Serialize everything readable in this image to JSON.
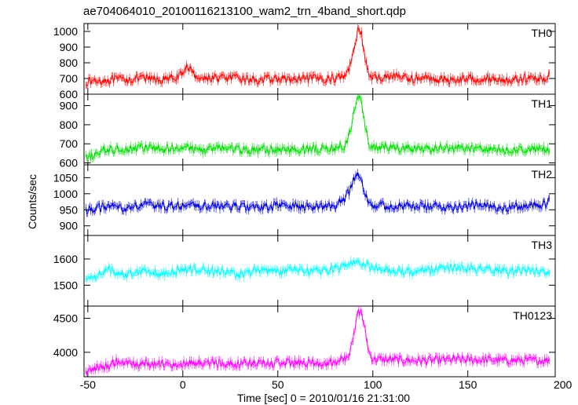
{
  "chart_data": {
    "type": "line",
    "title": "ae704064010_20100116213100_wam2_trn_4band_short.qdp",
    "xlabel": "Time [sec] 0 = 2010/01/16 21:31:00",
    "ylabel": "Counts/sec",
    "xlim": [
      -52,
      196
    ],
    "xticks": [
      -50,
      0,
      50,
      100,
      150,
      200
    ],
    "grid": false,
    "error_bars": true,
    "panels": [
      {
        "name": "TH0",
        "color": "#ff0000",
        "ylim": [
          600,
          1050
        ],
        "yticks": [
          600,
          700,
          800,
          900,
          1000
        ],
        "x": [
          -50,
          -40,
          -30,
          -20,
          -10,
          0,
          2,
          5,
          10,
          20,
          30,
          40,
          50,
          60,
          70,
          80,
          85,
          88,
          90,
          92,
          94,
          96,
          98,
          100,
          105,
          110,
          120,
          130,
          140,
          150,
          160,
          170,
          180,
          190,
          193
        ],
        "values": [
          680,
          690,
          695,
          700,
          690,
          720,
          790,
          735,
          700,
          705,
          700,
          690,
          700,
          690,
          700,
          700,
          720,
          780,
          900,
          1010,
          980,
          820,
          720,
          700,
          705,
          720,
          700,
          700,
          690,
          700,
          700,
          690,
          700,
          700,
          710
        ]
      },
      {
        "name": "TH1",
        "color": "#00e000",
        "ylim": [
          590,
          960
        ],
        "yticks": [
          600,
          700,
          800,
          900
        ],
        "x": [
          -50,
          -45,
          -40,
          -30,
          -20,
          -10,
          0,
          10,
          20,
          30,
          40,
          50,
          60,
          70,
          80,
          85,
          88,
          90,
          92,
          94,
          96,
          98,
          100,
          110,
          120,
          130,
          140,
          150,
          160,
          170,
          180,
          190,
          193
        ],
        "values": [
          625,
          650,
          670,
          675,
          680,
          670,
          685,
          665,
          680,
          670,
          665,
          670,
          670,
          675,
          675,
          690,
          750,
          870,
          945,
          930,
          780,
          700,
          680,
          680,
          675,
          670,
          680,
          675,
          670,
          665,
          670,
          670,
          670
        ]
      },
      {
        "name": "TH2",
        "color": "#0000dd",
        "ylim": [
          870,
          1090
        ],
        "yticks": [
          900,
          950,
          1000,
          1050
        ],
        "x": [
          -50,
          -40,
          -30,
          -20,
          -10,
          0,
          10,
          20,
          30,
          40,
          50,
          60,
          70,
          80,
          85,
          88,
          90,
          92,
          94,
          96,
          98,
          100,
          110,
          120,
          130,
          140,
          150,
          160,
          170,
          180,
          190,
          193
        ],
        "values": [
          950,
          960,
          955,
          965,
          960,
          965,
          960,
          962,
          960,
          955,
          965,
          960,
          960,
          962,
          985,
          1010,
          1045,
          1075,
          1040,
          1000,
          975,
          965,
          962,
          960,
          960,
          958,
          965,
          960,
          958,
          960,
          965,
          975
        ]
      },
      {
        "name": "TH3",
        "color": "#00ffff",
        "ylim": [
          1420,
          1690
        ],
        "yticks": [
          1500,
          1600
        ],
        "x": [
          -50,
          -40,
          -30,
          -20,
          -10,
          0,
          10,
          20,
          30,
          40,
          50,
          60,
          70,
          80,
          90,
          92,
          95,
          100,
          110,
          120,
          130,
          140,
          150,
          160,
          170,
          180,
          190,
          193
        ],
        "values": [
          1520,
          1560,
          1540,
          1560,
          1540,
          1560,
          1560,
          1550,
          1540,
          1560,
          1550,
          1560,
          1550,
          1560,
          1590,
          1600,
          1580,
          1560,
          1560,
          1550,
          1560,
          1570,
          1560,
          1560,
          1550,
          1560,
          1550,
          1540
        ]
      },
      {
        "name": "TH0123",
        "color": "#ff00ff",
        "ylim": [
          3640,
          4680
        ],
        "yticks": [
          4000,
          4500
        ],
        "x": [
          -50,
          -45,
          -40,
          -35,
          -30,
          -20,
          -10,
          0,
          10,
          20,
          30,
          40,
          50,
          60,
          70,
          80,
          85,
          88,
          90,
          92,
          94,
          96,
          98,
          100,
          110,
          120,
          130,
          140,
          150,
          160,
          170,
          180,
          190,
          193
        ],
        "values": [
          3730,
          3770,
          3800,
          3870,
          3820,
          3830,
          3830,
          3830,
          3840,
          3840,
          3830,
          3830,
          3840,
          3850,
          3840,
          3850,
          3900,
          3990,
          4250,
          4580,
          4600,
          4300,
          4000,
          3900,
          3890,
          3880,
          3880,
          3890,
          3890,
          3890,
          3880,
          3880,
          3880,
          3890
        ]
      }
    ]
  }
}
